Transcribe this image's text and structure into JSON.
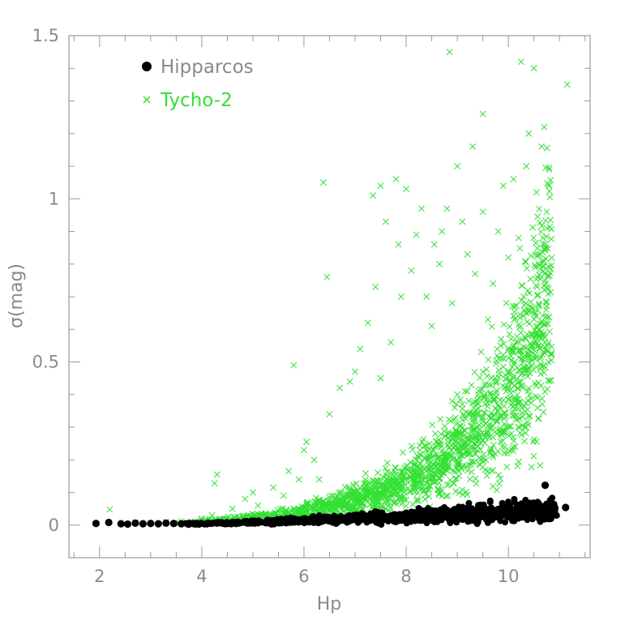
{
  "chart_data": {
    "type": "scatter",
    "xlabel": "Hp",
    "ylabel": "σ(mag)",
    "xlim": [
      1.4,
      11.6
    ],
    "ylim": [
      -0.1,
      1.5
    ],
    "x_ticks": [
      "2",
      "4",
      "6",
      "8",
      "10"
    ],
    "y_ticks": [
      "0",
      "0.5",
      "1",
      "1.5"
    ],
    "x_minor_step": 0.5,
    "y_minor_step": 0.1,
    "grid": false,
    "legend_position": "top-left",
    "colors": {
      "axis": "#9a9a9a",
      "hipparcos": "#000000",
      "tycho": "#33e033"
    },
    "series": [
      {
        "name": "Hipparcos",
        "marker": "filled-circle",
        "points": [
          [
            1.93,
            0.005
          ],
          [
            2.18,
            0.008
          ],
          [
            2.42,
            0.004
          ],
          [
            2.55,
            0.003
          ],
          [
            2.7,
            0.006
          ],
          [
            2.85,
            0.004
          ],
          [
            3.0,
            0.005
          ],
          [
            3.15,
            0.004
          ],
          [
            3.3,
            0.006
          ],
          [
            3.45,
            0.005
          ],
          [
            3.6,
            0.004
          ],
          [
            3.75,
            0.005
          ],
          [
            3.9,
            0.005
          ],
          [
            4.1,
            0.004
          ],
          [
            4.3,
            0.006
          ],
          [
            4.5,
            0.005
          ],
          [
            4.7,
            0.006
          ],
          [
            4.9,
            0.006
          ],
          [
            5.1,
            0.007
          ],
          [
            5.3,
            0.007
          ],
          [
            5.5,
            0.008
          ],
          [
            5.7,
            0.009
          ],
          [
            5.9,
            0.01
          ],
          [
            6.1,
            0.01
          ],
          [
            6.3,
            0.012
          ],
          [
            6.5,
            0.013
          ],
          [
            6.7,
            0.014
          ],
          [
            6.9,
            0.015
          ],
          [
            7.1,
            0.016
          ],
          [
            7.3,
            0.018
          ],
          [
            7.5,
            0.019
          ],
          [
            7.7,
            0.02
          ],
          [
            7.9,
            0.021
          ],
          [
            8.1,
            0.022
          ],
          [
            8.3,
            0.023
          ],
          [
            8.5,
            0.024
          ],
          [
            8.7,
            0.025
          ],
          [
            8.9,
            0.026
          ],
          [
            9.1,
            0.027
          ],
          [
            9.3,
            0.028
          ],
          [
            9.5,
            0.029
          ],
          [
            9.7,
            0.03
          ],
          [
            9.9,
            0.031
          ],
          [
            10.1,
            0.033
          ],
          [
            10.3,
            0.034
          ],
          [
            10.5,
            0.036
          ],
          [
            10.7,
            0.037
          ],
          [
            10.9,
            0.035
          ],
          [
            7.4,
            0.04
          ],
          [
            8.8,
            0.045
          ],
          [
            9.8,
            0.048
          ],
          [
            10.45,
            0.055
          ],
          [
            10.72,
            0.122
          ],
          [
            11.12,
            0.054
          ]
        ]
      },
      {
        "name": "Tycho-2",
        "marker": "cross",
        "points": [
          [
            2.2,
            0.048
          ],
          [
            2.7,
            0.008
          ],
          [
            3.3,
            0.01
          ],
          [
            3.6,
            0.012
          ],
          [
            4.0,
            0.02
          ],
          [
            4.2,
            0.03
          ],
          [
            4.3,
            0.155
          ],
          [
            4.25,
            0.128
          ],
          [
            4.6,
            0.05
          ],
          [
            4.85,
            0.08
          ],
          [
            5.0,
            0.1
          ],
          [
            5.1,
            0.06
          ],
          [
            5.4,
            0.115
          ],
          [
            5.6,
            0.09
          ],
          [
            5.7,
            0.165
          ],
          [
            5.8,
            0.49
          ],
          [
            5.9,
            0.14
          ],
          [
            6.0,
            0.23
          ],
          [
            6.05,
            0.255
          ],
          [
            6.2,
            0.2
          ],
          [
            6.3,
            0.14
          ],
          [
            6.38,
            1.05
          ],
          [
            6.45,
            0.76
          ],
          [
            6.5,
            0.34
          ],
          [
            6.7,
            0.42
          ],
          [
            6.9,
            0.44
          ],
          [
            7.0,
            0.47
          ],
          [
            7.1,
            0.54
          ],
          [
            7.25,
            0.62
          ],
          [
            7.35,
            1.01
          ],
          [
            7.4,
            0.73
          ],
          [
            7.5,
            1.04
          ],
          [
            7.5,
            0.45
          ],
          [
            7.6,
            0.93
          ],
          [
            7.7,
            0.56
          ],
          [
            7.8,
            1.06
          ],
          [
            7.85,
            0.86
          ],
          [
            7.9,
            0.7
          ],
          [
            8.0,
            1.03
          ],
          [
            8.1,
            0.78
          ],
          [
            8.2,
            0.89
          ],
          [
            8.3,
            0.97
          ],
          [
            8.4,
            0.7
          ],
          [
            8.5,
            0.61
          ],
          [
            8.55,
            0.86
          ],
          [
            8.65,
            0.8
          ],
          [
            8.7,
            0.9
          ],
          [
            8.8,
            0.97
          ],
          [
            8.85,
            1.45
          ],
          [
            8.9,
            0.68
          ],
          [
            9.0,
            1.1
          ],
          [
            9.1,
            0.93
          ],
          [
            9.2,
            0.83
          ],
          [
            9.3,
            1.16
          ],
          [
            9.35,
            0.77
          ],
          [
            9.5,
            1.26
          ],
          [
            9.5,
            0.96
          ],
          [
            9.6,
            0.63
          ],
          [
            9.7,
            0.74
          ],
          [
            9.8,
            0.9
          ],
          [
            9.9,
            1.04
          ],
          [
            10.0,
            0.82
          ],
          [
            10.1,
            1.06
          ],
          [
            10.2,
            0.88
          ],
          [
            10.25,
            1.42
          ],
          [
            10.35,
            1.1
          ],
          [
            10.4,
            1.2
          ],
          [
            10.5,
            1.4
          ],
          [
            10.55,
            1.02
          ],
          [
            10.65,
            1.16
          ],
          [
            10.7,
            1.22
          ],
          [
            10.8,
            1.09
          ],
          [
            10.75,
            0.96
          ],
          [
            11.15,
            1.35
          ],
          [
            9.0,
            0.4
          ],
          [
            8.9,
            0.38
          ],
          [
            9.15,
            0.41
          ],
          [
            8.95,
            0.36
          ],
          [
            9.1,
            0.37
          ]
        ],
        "band": {
          "x_range": [
            3.5,
            10.85
          ],
          "median_curve": [
            [
              3.5,
              0.005
            ],
            [
              4.5,
              0.015
            ],
            [
              5.5,
              0.03
            ],
            [
              6.5,
              0.055
            ],
            [
              7.5,
              0.1
            ],
            [
              8.5,
              0.17
            ],
            [
              9.5,
              0.3
            ],
            [
              10.0,
              0.42
            ],
            [
              10.5,
              0.6
            ],
            [
              10.8,
              0.72
            ]
          ],
          "point_count": 1700
        }
      }
    ]
  }
}
